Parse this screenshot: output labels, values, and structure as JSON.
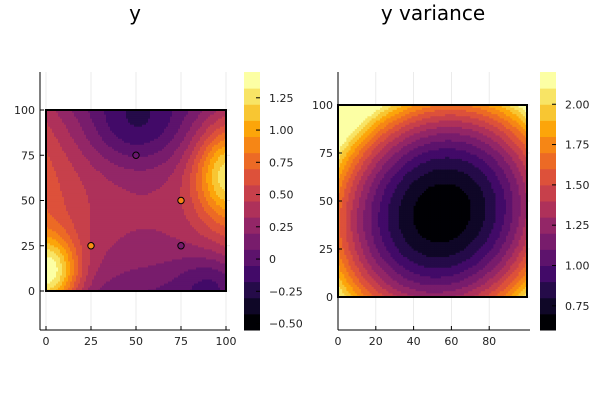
{
  "chart_data": [
    {
      "type": "heatmap",
      "subtype": "filled-contour",
      "title": "y",
      "xlabel": "",
      "ylabel": "",
      "xlim": [
        -2,
        101
      ],
      "ylim": [
        -22,
        120
      ],
      "x_ticks": [
        0,
        25,
        50,
        75,
        100
      ],
      "y_ticks": [
        0,
        25,
        50,
        75,
        100
      ],
      "domain": {
        "x": [
          0,
          100
        ],
        "y": [
          0,
          100
        ]
      },
      "colormap": "inferno",
      "colorbar": {
        "range": [
          -0.55,
          1.45
        ],
        "ticks": [
          -0.5,
          -0.25,
          0,
          0.25,
          0.5,
          0.75,
          1.0,
          1.25
        ],
        "tick_labels": [
          "−0.50",
          "−0.25",
          "0",
          "0.25",
          "0.50",
          "0.75",
          "1.00",
          "1.25"
        ],
        "levels": 16
      },
      "sample_points": [
        {
          "x": 25,
          "y": 25,
          "value": 0.95
        },
        {
          "x": 50,
          "y": 75,
          "value": 0.05
        },
        {
          "x": 75,
          "y": 50,
          "value": 0.9
        },
        {
          "x": 75,
          "y": 25,
          "value": 0.1
        }
      ],
      "grid": true,
      "legend": "none"
    },
    {
      "type": "heatmap",
      "subtype": "filled-contour",
      "title": "y variance",
      "xlabel": "",
      "ylabel": "",
      "xlim": [
        0,
        100
      ],
      "ylim": [
        -17,
        118
      ],
      "x_ticks": [
        0,
        20,
        40,
        60,
        80
      ],
      "y_ticks": [
        0,
        25,
        50,
        75,
        100
      ],
      "domain": {
        "x": [
          0,
          100
        ],
        "y": [
          0,
          100
        ]
      },
      "colormap": "inferno",
      "colorbar": {
        "range": [
          0.6,
          2.2
        ],
        "ticks": [
          0.75,
          1.0,
          1.25,
          1.5,
          1.75,
          2.0
        ],
        "tick_labels": [
          "0.75",
          "1.00",
          "1.25",
          "1.50",
          "1.75",
          "2.00"
        ],
        "levels": 16
      },
      "minimum_at": {
        "x": 55,
        "y": 44
      },
      "grid": true,
      "legend": "none"
    }
  ]
}
